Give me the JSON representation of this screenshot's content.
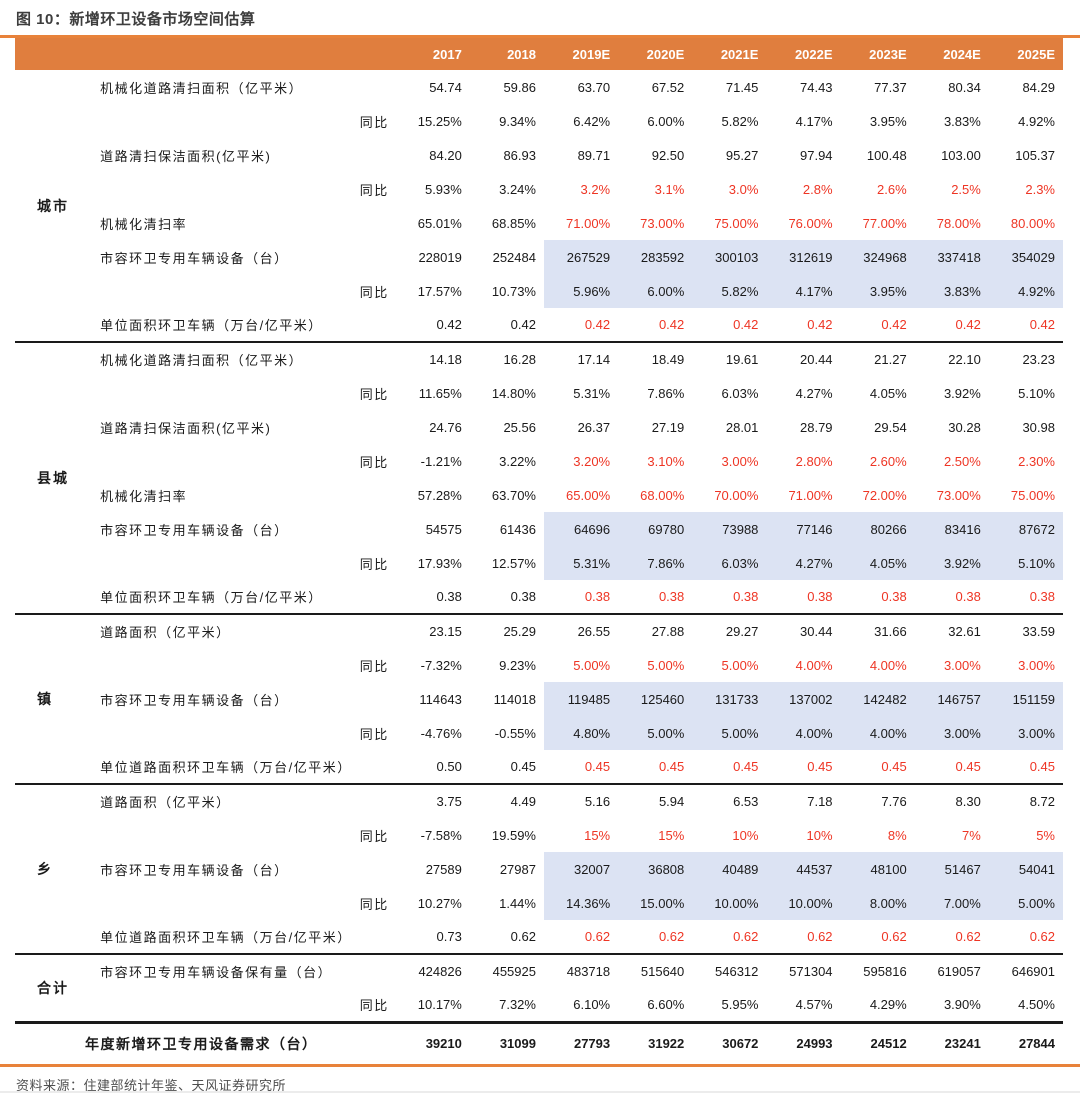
{
  "title": "图 10：新增环卫设备市场空间估算",
  "source": "资料来源：住建部统计年鉴、天风证券研究所",
  "colors": {
    "header_bg": "#e07e3e",
    "accent_orange": "#e8823a",
    "highlight_bg": "#dce3f3",
    "red_text": "#ee3524"
  },
  "table": {
    "year_headers": [
      "2017",
      "2018",
      "2019E",
      "2020E",
      "2021E",
      "2022E",
      "2023E",
      "2024E",
      "2025E"
    ],
    "groups": [
      {
        "name": "城市",
        "rows": [
          {
            "label": "机械化道路清扫面积（亿平米）",
            "values": [
              "54.74",
              "59.86",
              "63.70",
              "67.52",
              "71.45",
              "74.43",
              "77.37",
              "80.34",
              "84.29"
            ]
          },
          {
            "label": "同比",
            "is_sub": true,
            "values": [
              "15.25%",
              "9.34%",
              "6.42%",
              "6.00%",
              "5.82%",
              "4.17%",
              "3.95%",
              "3.83%",
              "4.92%"
            ]
          },
          {
            "label": "道路清扫保洁面积(亿平米)",
            "values": [
              "84.20",
              "86.93",
              "89.71",
              "92.50",
              "95.27",
              "97.94",
              "100.48",
              "103.00",
              "105.37"
            ]
          },
          {
            "label": "同比",
            "is_sub": true,
            "red_forecast": true,
            "values": [
              "5.93%",
              "3.24%",
              "3.2%",
              "3.1%",
              "3.0%",
              "2.8%",
              "2.6%",
              "2.5%",
              "2.3%"
            ]
          },
          {
            "label": "机械化清扫率",
            "red_forecast": true,
            "values": [
              "65.01%",
              "68.85%",
              "71.00%",
              "73.00%",
              "75.00%",
              "76.00%",
              "77.00%",
              "78.00%",
              "80.00%"
            ]
          },
          {
            "label": "市容环卫专用车辆设备（台）",
            "highlight": true,
            "values": [
              "228019",
              "252484",
              "267529",
              "283592",
              "300103",
              "312619",
              "324968",
              "337418",
              "354029"
            ]
          },
          {
            "label": "同比",
            "is_sub": true,
            "highlight": true,
            "values": [
              "17.57%",
              "10.73%",
              "5.96%",
              "6.00%",
              "5.82%",
              "4.17%",
              "3.95%",
              "3.83%",
              "4.92%"
            ]
          },
          {
            "label": "单位面积环卫车辆（万台/亿平米）",
            "red_forecast": true,
            "values": [
              "0.42",
              "0.42",
              "0.42",
              "0.42",
              "0.42",
              "0.42",
              "0.42",
              "0.42",
              "0.42"
            ]
          }
        ]
      },
      {
        "name": "县城",
        "rows": [
          {
            "label": "机械化道路清扫面积（亿平米）",
            "values": [
              "14.18",
              "16.28",
              "17.14",
              "18.49",
              "19.61",
              "20.44",
              "21.27",
              "22.10",
              "23.23"
            ]
          },
          {
            "label": "同比",
            "is_sub": true,
            "values": [
              "11.65%",
              "14.80%",
              "5.31%",
              "7.86%",
              "6.03%",
              "4.27%",
              "4.05%",
              "3.92%",
              "5.10%"
            ]
          },
          {
            "label": "道路清扫保洁面积(亿平米)",
            "values": [
              "24.76",
              "25.56",
              "26.37",
              "27.19",
              "28.01",
              "28.79",
              "29.54",
              "30.28",
              "30.98"
            ]
          },
          {
            "label": "同比",
            "is_sub": true,
            "red_forecast": true,
            "values": [
              "-1.21%",
              "3.22%",
              "3.20%",
              "3.10%",
              "3.00%",
              "2.80%",
              "2.60%",
              "2.50%",
              "2.30%"
            ]
          },
          {
            "label": "机械化清扫率",
            "red_forecast": true,
            "values": [
              "57.28%",
              "63.70%",
              "65.00%",
              "68.00%",
              "70.00%",
              "71.00%",
              "72.00%",
              "73.00%",
              "75.00%"
            ]
          },
          {
            "label": "市容环卫专用车辆设备（台）",
            "highlight": true,
            "values": [
              "54575",
              "61436",
              "64696",
              "69780",
              "73988",
              "77146",
              "80266",
              "83416",
              "87672"
            ]
          },
          {
            "label": "同比",
            "is_sub": true,
            "highlight": true,
            "values": [
              "17.93%",
              "12.57%",
              "5.31%",
              "7.86%",
              "6.03%",
              "4.27%",
              "4.05%",
              "3.92%",
              "5.10%"
            ]
          },
          {
            "label": "单位面积环卫车辆（万台/亿平米）",
            "red_forecast": true,
            "values": [
              "0.38",
              "0.38",
              "0.38",
              "0.38",
              "0.38",
              "0.38",
              "0.38",
              "0.38",
              "0.38"
            ]
          }
        ]
      },
      {
        "name": "镇",
        "rows": [
          {
            "label": "道路面积（亿平米）",
            "values": [
              "23.15",
              "25.29",
              "26.55",
              "27.88",
              "29.27",
              "30.44",
              "31.66",
              "32.61",
              "33.59"
            ]
          },
          {
            "label": "同比",
            "is_sub": true,
            "red_forecast": true,
            "values": [
              "-7.32%",
              "9.23%",
              "5.00%",
              "5.00%",
              "5.00%",
              "4.00%",
              "4.00%",
              "3.00%",
              "3.00%"
            ]
          },
          {
            "label": "市容环卫专用车辆设备（台）",
            "highlight": true,
            "values": [
              "114643",
              "114018",
              "119485",
              "125460",
              "131733",
              "137002",
              "142482",
              "146757",
              "151159"
            ]
          },
          {
            "label": "同比",
            "is_sub": true,
            "highlight": true,
            "values": [
              "-4.76%",
              "-0.55%",
              "4.80%",
              "5.00%",
              "5.00%",
              "4.00%",
              "4.00%",
              "3.00%",
              "3.00%"
            ]
          },
          {
            "label": "单位道路面积环卫车辆（万台/亿平米）",
            "red_forecast": true,
            "values": [
              "0.50",
              "0.45",
              "0.45",
              "0.45",
              "0.45",
              "0.45",
              "0.45",
              "0.45",
              "0.45"
            ]
          }
        ]
      },
      {
        "name": "乡",
        "rows": [
          {
            "label": "道路面积（亿平米）",
            "values": [
              "3.75",
              "4.49",
              "5.16",
              "5.94",
              "6.53",
              "7.18",
              "7.76",
              "8.30",
              "8.72"
            ]
          },
          {
            "label": "同比",
            "is_sub": true,
            "red_forecast": true,
            "values": [
              "-7.58%",
              "19.59%",
              "15%",
              "15%",
              "10%",
              "10%",
              "8%",
              "7%",
              "5%"
            ]
          },
          {
            "label": "市容环卫专用车辆设备（台）",
            "highlight": true,
            "values": [
              "27589",
              "27987",
              "32007",
              "36808",
              "40489",
              "44537",
              "48100",
              "51467",
              "54041"
            ]
          },
          {
            "label": "同比",
            "is_sub": true,
            "highlight": true,
            "values": [
              "10.27%",
              "1.44%",
              "14.36%",
              "15.00%",
              "10.00%",
              "10.00%",
              "8.00%",
              "7.00%",
              "5.00%"
            ]
          },
          {
            "label": "单位道路面积环卫车辆（万台/亿平米）",
            "red_forecast": true,
            "values": [
              "0.73",
              "0.62",
              "0.62",
              "0.62",
              "0.62",
              "0.62",
              "0.62",
              "0.62",
              "0.62"
            ]
          }
        ]
      },
      {
        "name": "合计",
        "rows": [
          {
            "label": "市容环卫专用车辆设备保有量（台）",
            "values": [
              "424826",
              "455925",
              "483718",
              "515640",
              "546312",
              "571304",
              "595816",
              "619057",
              "646901"
            ]
          },
          {
            "label": "同比",
            "is_sub": true,
            "values": [
              "10.17%",
              "7.32%",
              "6.10%",
              "6.60%",
              "5.95%",
              "4.57%",
              "4.29%",
              "3.90%",
              "4.50%"
            ]
          }
        ]
      }
    ],
    "footer_row": {
      "label": "年度新增环卫专用设备需求（台）",
      "values": [
        "39210",
        "31099",
        "27793",
        "31922",
        "30672",
        "24993",
        "24512",
        "23241",
        "27844"
      ]
    }
  }
}
